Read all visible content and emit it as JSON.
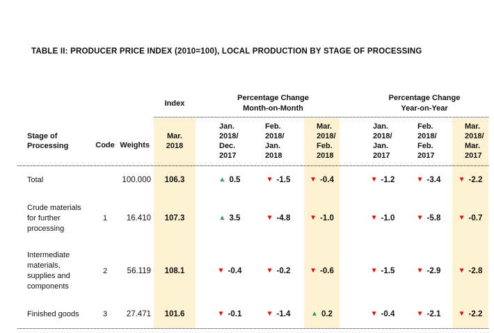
{
  "title": "TABLE II: PRODUCER PRICE INDEX (2010=100), LOCAL PRODUCTION BY STAGE OF PROCESSING",
  "colors": {
    "highlight": "#FDF2D1",
    "up": "#2DA04E",
    "down": "#F00000"
  },
  "table": {
    "group_headers": {
      "index": "Index",
      "mom": "Percentage Change\nMonth-on-Month",
      "yoy": "Percentage Change\nYear-on-Year"
    },
    "col_headers": {
      "stage": "Stage of\nProcessing",
      "code": "Code",
      "weights": "Weights",
      "index_period": "Mar.\n2018",
      "mom": [
        "Jan.\n2018/\nDec.\n2017",
        "Feb.\n2018/\nJan.\n2018",
        "Mar.\n2018/\nFeb.\n2018"
      ],
      "yoy": [
        "Jan.\n2018/\nJan.\n2017",
        "Feb.\n2018/\nFeb.\n2017",
        "Mar.\n2018/\nMar.\n2017"
      ]
    },
    "rows": [
      {
        "stage": "Total",
        "code": "",
        "weights": "100.000",
        "index": "106.3",
        "mom": [
          {
            "dir": "up",
            "val": "0.5"
          },
          {
            "dir": "down",
            "val": "-1.5"
          },
          {
            "dir": "down",
            "val": "-0.4"
          }
        ],
        "yoy": [
          {
            "dir": "down",
            "val": "-1.2"
          },
          {
            "dir": "down",
            "val": "-3.4"
          },
          {
            "dir": "down",
            "val": "-2.2"
          }
        ]
      },
      {
        "stage": "Crude materials\nfor further\nprocessing",
        "code": "1",
        "weights": "16.410",
        "index": "107.3",
        "mom": [
          {
            "dir": "up",
            "val": "3.5"
          },
          {
            "dir": "down",
            "val": "-4.8"
          },
          {
            "dir": "down",
            "val": "-1.0"
          }
        ],
        "yoy": [
          {
            "dir": "down",
            "val": "-1.0"
          },
          {
            "dir": "down",
            "val": "-5.8"
          },
          {
            "dir": "down",
            "val": "-0.7"
          }
        ]
      },
      {
        "stage": "Intermediate\nmaterials,\nsupplies and\ncomponents",
        "code": "2",
        "weights": "56.119",
        "index": "108.1",
        "mom": [
          {
            "dir": "down",
            "val": "-0.4"
          },
          {
            "dir": "down",
            "val": "-0.2"
          },
          {
            "dir": "down",
            "val": "-0.6"
          }
        ],
        "yoy": [
          {
            "dir": "down",
            "val": "-1.5"
          },
          {
            "dir": "down",
            "val": "-2.9"
          },
          {
            "dir": "down",
            "val": "-2.8"
          }
        ]
      },
      {
        "stage": "Finished goods",
        "code": "3",
        "weights": "27.471",
        "index": "101.6",
        "mom": [
          {
            "dir": "down",
            "val": "-0.1"
          },
          {
            "dir": "down",
            "val": "-1.4"
          },
          {
            "dir": "up",
            "val": "0.2"
          }
        ],
        "yoy": [
          {
            "dir": "down",
            "val": "-0.4"
          },
          {
            "dir": "down",
            "val": "-2.1"
          },
          {
            "dir": "down",
            "val": "-2.2"
          }
        ]
      }
    ]
  }
}
